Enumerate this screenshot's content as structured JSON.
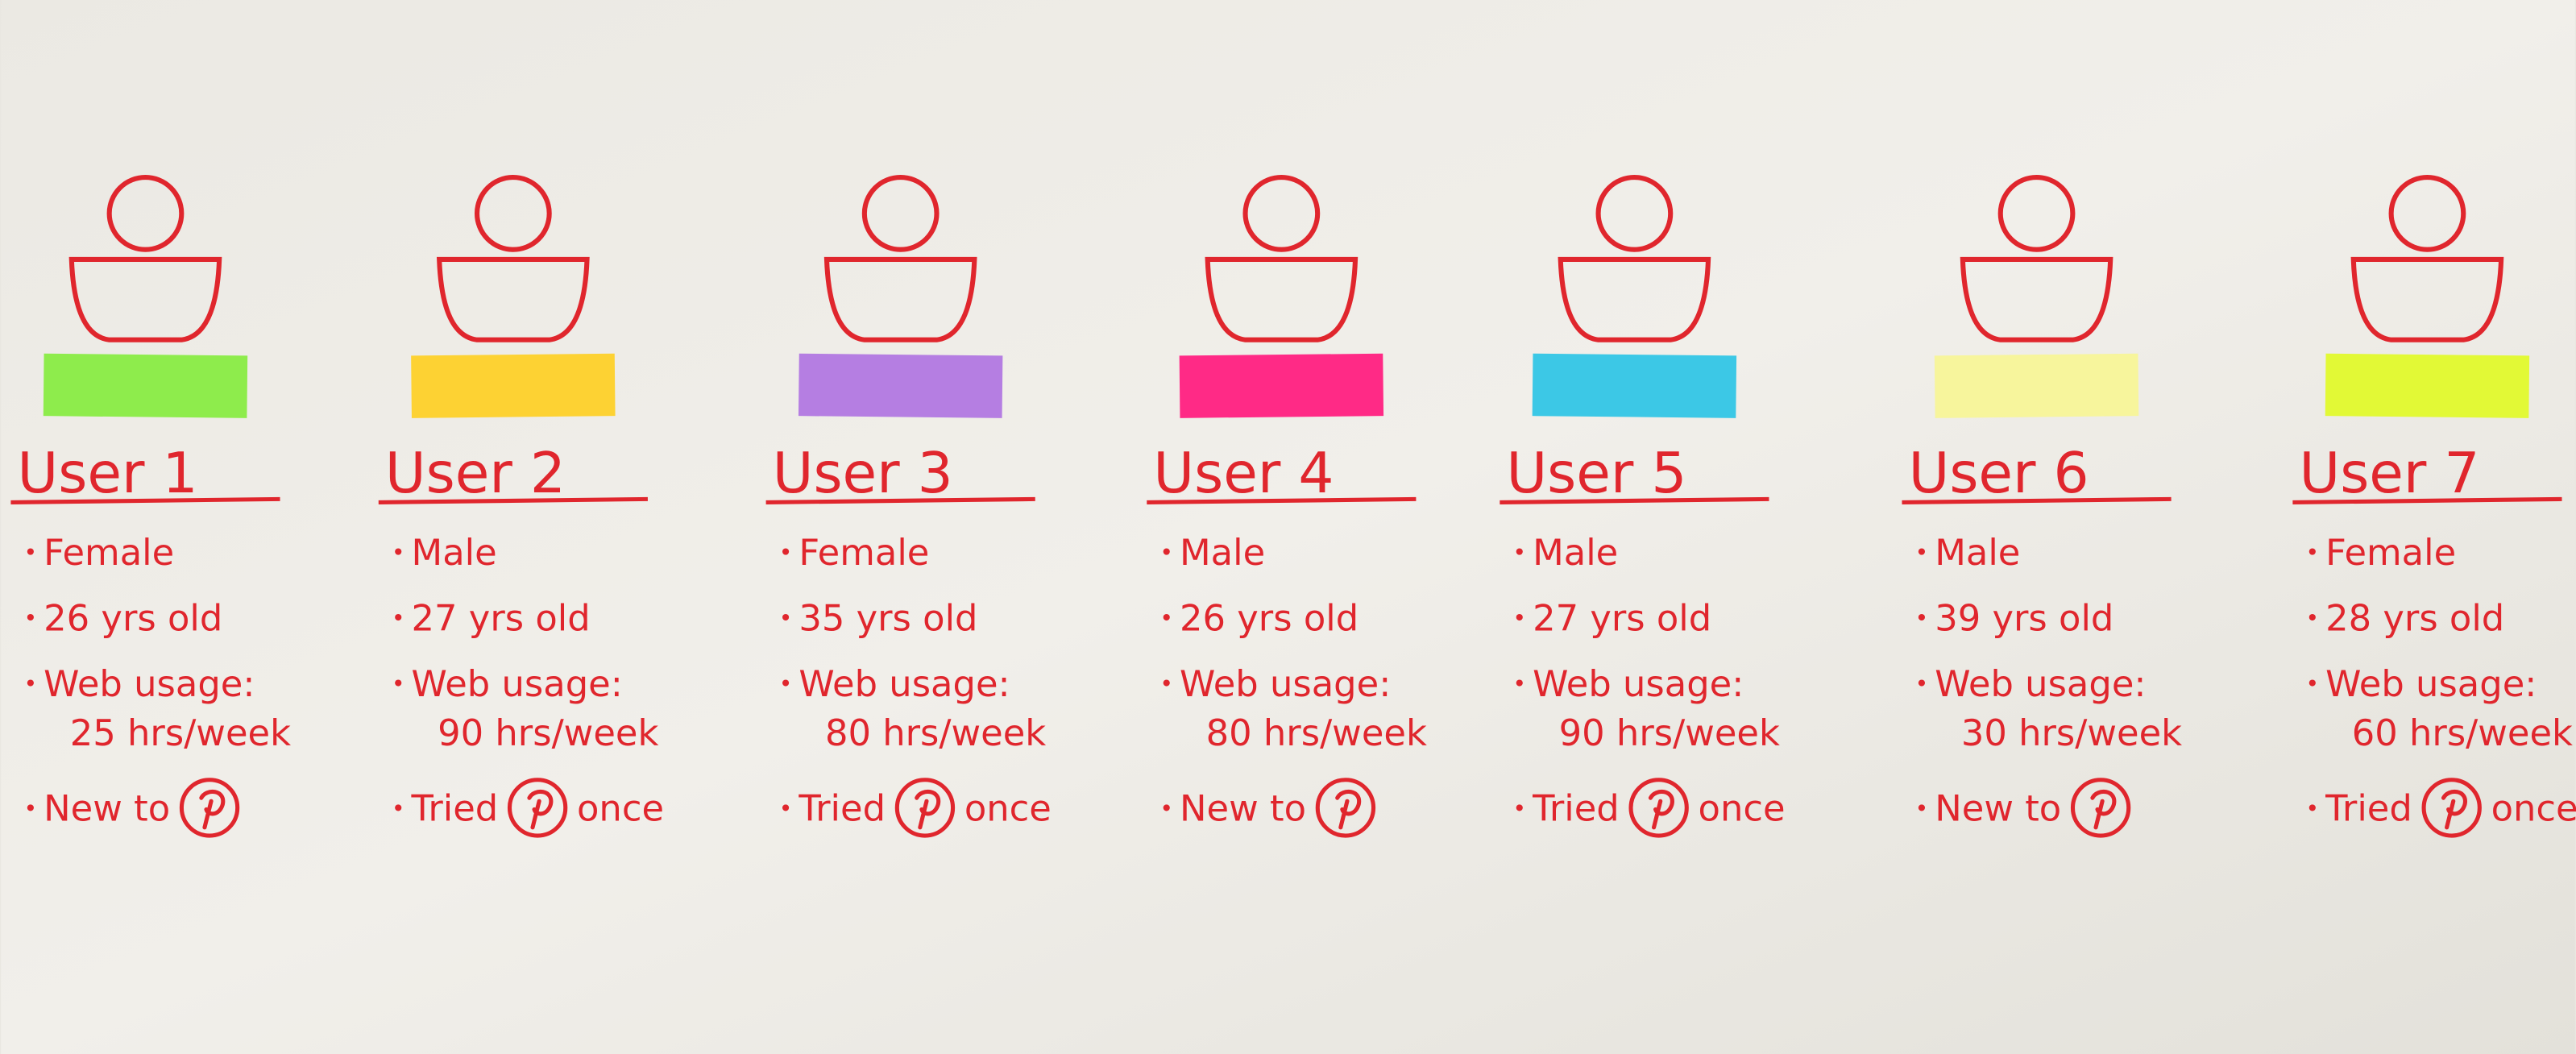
{
  "users": [
    {
      "name": "User 1",
      "note_color": "#8eec4c",
      "bullets": [
        {
          "text": "Female"
        },
        {
          "text": "26 yrs old"
        },
        {
          "text": "Web usage:",
          "detail": "25 hrs/week"
        },
        {
          "text": "New to"
        }
      ]
    },
    {
      "name": "User 2",
      "note_color": "#fdd233",
      "bullets": [
        {
          "text": "Male"
        },
        {
          "text": "27 yrs old"
        },
        {
          "text": "Web usage:",
          "detail": "90 hrs/week"
        },
        {
          "text": "Tried",
          "after": "once"
        }
      ]
    },
    {
      "name": "User 3",
      "note_color": "#b57ee2",
      "bullets": [
        {
          "text": "Female"
        },
        {
          "text": "35 yrs old"
        },
        {
          "text": "Web usage:",
          "detail": "80 hrs/week"
        },
        {
          "text": "Tried",
          "after": "once"
        }
      ]
    },
    {
      "name": "User 4",
      "note_color": "#ff2a86",
      "bullets": [
        {
          "text": "Male"
        },
        {
          "text": "26 yrs old"
        },
        {
          "text": "Web usage:",
          "detail": "80 hrs/week"
        },
        {
          "text": "New to"
        }
      ]
    },
    {
      "name": "User 5",
      "note_color": "#3cc8e6",
      "bullets": [
        {
          "text": "Male"
        },
        {
          "text": "27 yrs old"
        },
        {
          "text": "Web usage:",
          "detail": "90 hrs/week"
        },
        {
          "text": "Tried",
          "after": "once"
        }
      ]
    },
    {
      "name": "User 6",
      "note_color": "#f7f59c",
      "bullets": [
        {
          "text": "Male"
        },
        {
          "text": "39 yrs old"
        },
        {
          "text": "Web usage:",
          "detail": "30 hrs/week"
        },
        {
          "text": "New to"
        }
      ]
    },
    {
      "name": "User 7",
      "note_color": "#e2f936",
      "bullets": [
        {
          "text": "Female"
        },
        {
          "text": "28 yrs old"
        },
        {
          "text": "Web usage:",
          "detail": "60 hrs/week"
        },
        {
          "text": "Tried",
          "after": "once"
        }
      ]
    }
  ]
}
